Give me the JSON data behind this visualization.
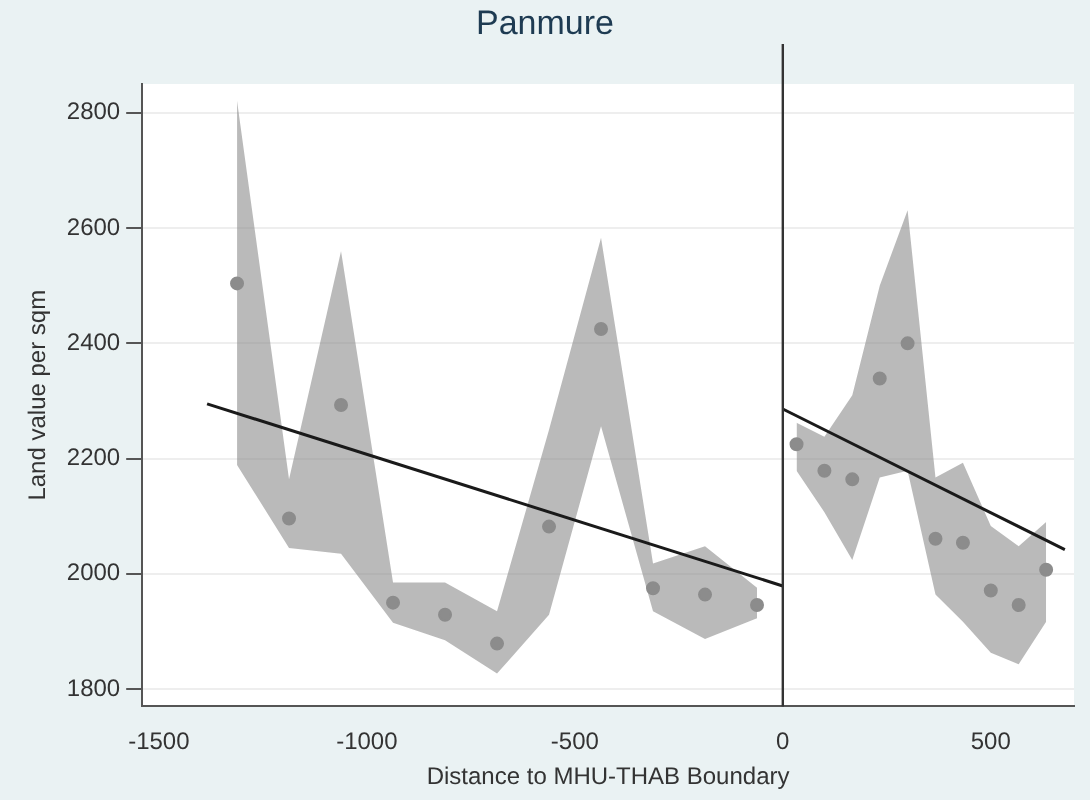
{
  "chart_data": {
    "type": "scatter",
    "title": "Panmure",
    "xlabel": "Distance to MHU-THAB Boundary",
    "ylabel": "Land value per sqm",
    "xlim": [
      -1540,
      700
    ],
    "xticks": [
      -1500,
      -1000,
      -500,
      0,
      500
    ],
    "ylim": [
      1770,
      2850
    ],
    "yticks": [
      1800,
      2000,
      2200,
      2400,
      2600,
      2800
    ],
    "grid": "y",
    "legend": false,
    "series": [
      {
        "marker": "circle",
        "color": "#8c8c8c",
        "x": [
          -1312,
          -1187,
          -1062,
          -937,
          -812,
          -687,
          -562,
          -437,
          -312,
          -187,
          -62
        ],
        "values": [
          2504,
          2096,
          2293,
          1950,
          1929,
          1879,
          2082,
          2425,
          1975,
          1964,
          1946
        ],
        "lower": [
          2189,
          2045,
          2035,
          1915,
          1885,
          1827,
          1929,
          2256,
          1935,
          1887,
          1923
        ],
        "upper": [
          2821,
          2164,
          2560,
          1985,
          1985,
          1935,
          2250,
          2583,
          2018,
          2048,
          1976
        ]
      },
      {
        "marker": "circle",
        "color": "#8c8c8c",
        "x": [
          33,
          100,
          167,
          233,
          300,
          367,
          433,
          500,
          567,
          633
        ],
        "values": [
          2225,
          2179,
          2164,
          2339,
          2400,
          2061,
          2054,
          1971,
          1946,
          2007
        ],
        "lower": [
          2179,
          2107,
          2024,
          2167,
          2179,
          1964,
          1917,
          1863,
          1843,
          1917
        ],
        "upper": [
          2262,
          2238,
          2310,
          2500,
          2631,
          2167,
          2193,
          2083,
          2048,
          2090
        ]
      },
      {
        "type": "line",
        "color": "#1a1a1a",
        "x": [
          -1384,
          0
        ],
        "values": [
          2295,
          1979
        ]
      },
      {
        "type": "line",
        "color": "#1a1a1a",
        "x": [
          0,
          678
        ],
        "values": [
          2286,
          2042
        ]
      }
    ],
    "ref_lines": [
      {
        "axis": "x",
        "value": 0,
        "color": "#333333"
      }
    ]
  }
}
